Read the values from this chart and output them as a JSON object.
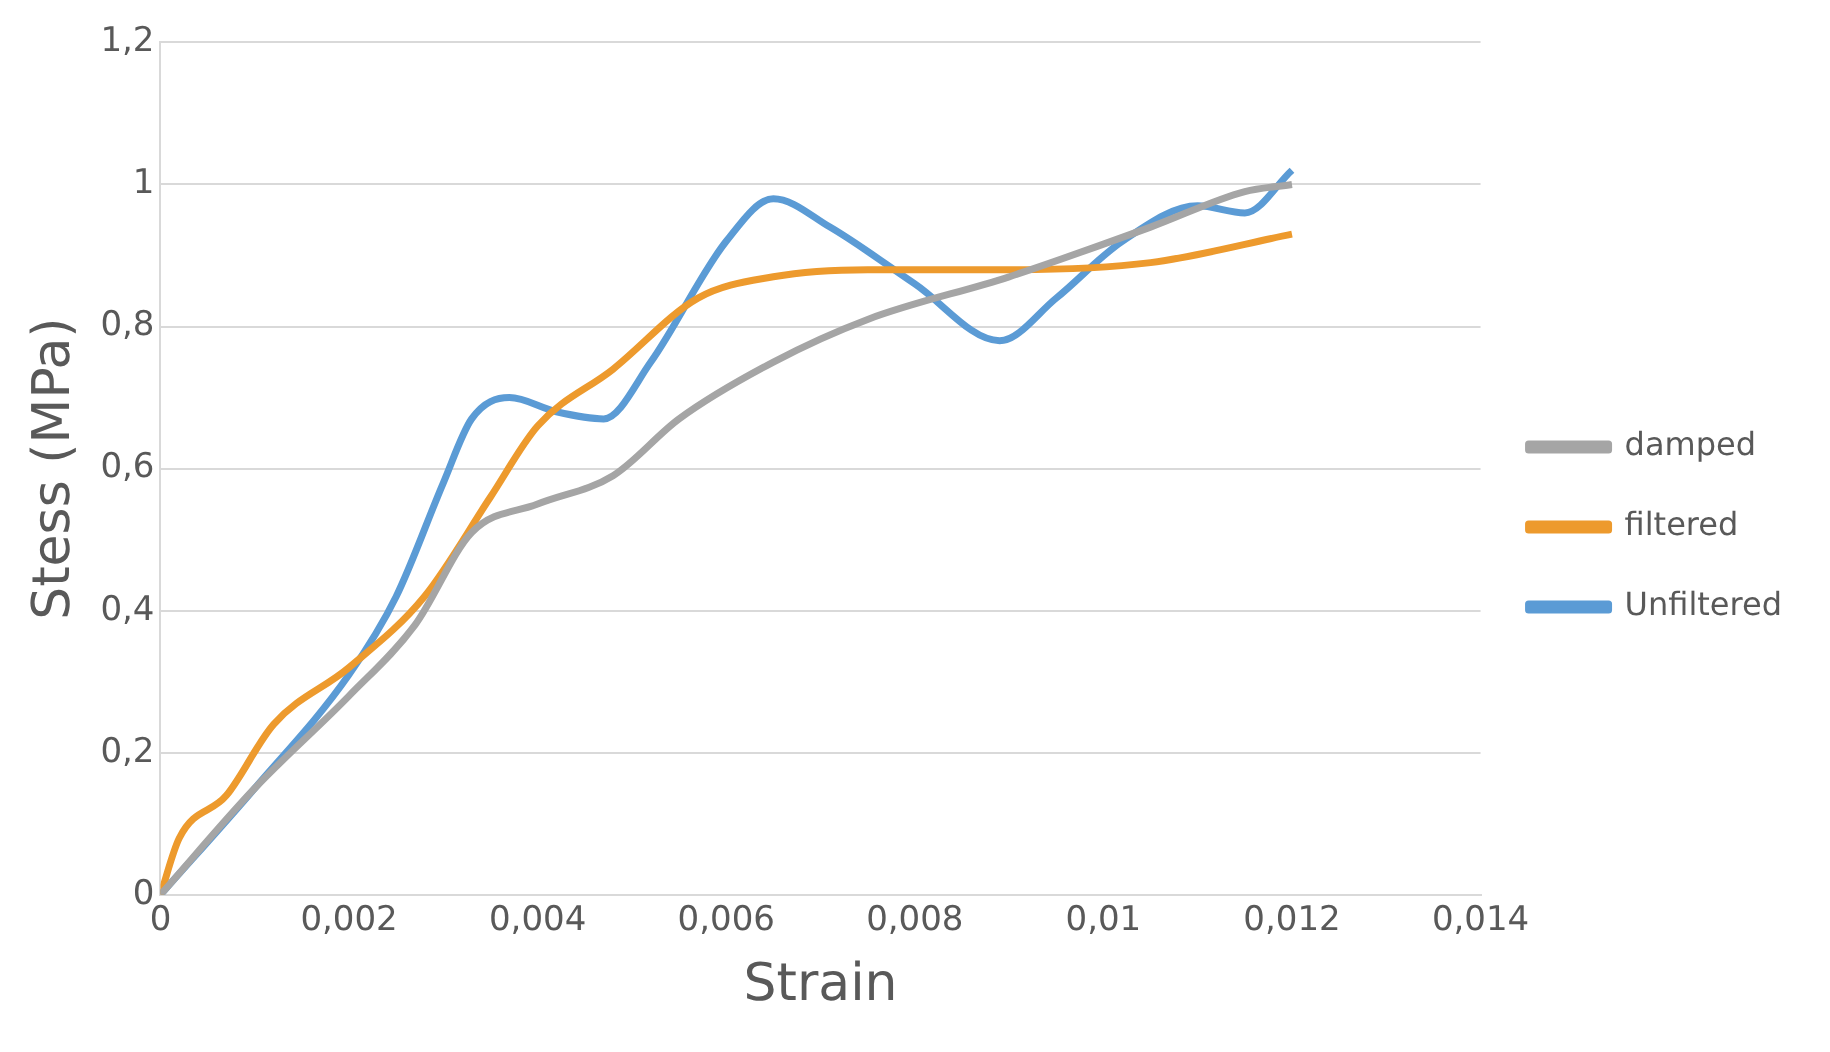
{
  "chart_data": {
    "type": "line",
    "xlabel": "Strain",
    "ylabel": "Stess (MPa)",
    "xlim": [
      0,
      0.014
    ],
    "ylim": [
      0,
      1.2
    ],
    "xticks": [
      0,
      {
        "value": 0.002,
        "label": "0,002"
      },
      {
        "value": 0.004,
        "label": "0,004"
      },
      {
        "value": 0.006,
        "label": "0,006"
      },
      {
        "value": 0.008,
        "label": "0,008"
      },
      {
        "value": 0.01,
        "label": "0,01"
      },
      {
        "value": 0.012,
        "label": "0,012"
      },
      {
        "value": 0.014,
        "label": "0,014"
      }
    ],
    "yticks": [
      0,
      {
        "value": 0.2,
        "label": "0,2"
      },
      {
        "value": 0.4,
        "label": "0,4"
      },
      {
        "value": 0.6,
        "label": "0,6"
      },
      {
        "value": 0.8,
        "label": "0,8"
      },
      1,
      {
        "value": 1.2,
        "label": "1,2"
      }
    ],
    "grid": "y",
    "legend": "right",
    "marker": "none",
    "line_style": "solid",
    "series": [
      {
        "name": "damped",
        "color": "#a5a5a5",
        "x": [
          0,
          0.001,
          0.002,
          0.0027,
          0.0033,
          0.004,
          0.0048,
          0.0055,
          0.0065,
          0.0075,
          0.009,
          0.0105,
          0.0115,
          0.012
        ],
        "values": [
          0,
          0.15,
          0.28,
          0.38,
          0.51,
          0.55,
          0.59,
          0.67,
          0.75,
          0.81,
          0.87,
          0.94,
          0.99,
          1.0
        ]
      },
      {
        "name": "filtered",
        "color": "#ed9a2d",
        "x": [
          0,
          0.0002,
          0.0007,
          0.0012,
          0.002,
          0.0028,
          0.0035,
          0.004,
          0.0048,
          0.0057,
          0.0065,
          0.0075,
          0.009,
          0.0105,
          0.012
        ],
        "values": [
          0,
          0.08,
          0.14,
          0.24,
          0.32,
          0.42,
          0.56,
          0.66,
          0.74,
          0.84,
          0.87,
          0.88,
          0.88,
          0.89,
          0.93
        ]
      },
      {
        "name": "Unfiltered",
        "color": "#5b9bd5",
        "x": [
          0,
          0.001,
          0.002,
          0.0025,
          0.003,
          0.0033,
          0.0037,
          0.0042,
          0.0047,
          0.0052,
          0.006,
          0.0065,
          0.0071,
          0.008,
          0.0089,
          0.0095,
          0.0102,
          0.011,
          0.0115,
          0.012
        ],
        "values": [
          0,
          0.15,
          0.31,
          0.42,
          0.58,
          0.67,
          0.7,
          0.68,
          0.67,
          0.75,
          0.92,
          0.98,
          0.94,
          0.86,
          0.78,
          0.84,
          0.92,
          0.97,
          0.96,
          1.02
        ]
      }
    ]
  }
}
